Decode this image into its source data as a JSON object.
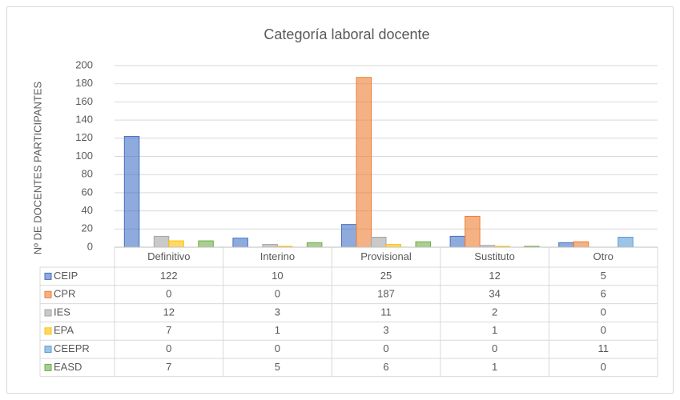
{
  "chart_data": {
    "type": "bar",
    "title": "Categoría laboral docente",
    "y_label": "Nº DE DOCENTES PARTICIPANTES",
    "categories": [
      "Definitivo",
      "Interino",
      "Provisional",
      "Sustituto",
      "Otro"
    ],
    "series": [
      {
        "name": "CEIP",
        "color": "#4472c4",
        "values": [
          122,
          10,
          25,
          12,
          5
        ]
      },
      {
        "name": "CPR",
        "color": "#ed7d31",
        "values": [
          0,
          0,
          187,
          34,
          6
        ]
      },
      {
        "name": "IES",
        "color": "#a5a5a5",
        "values": [
          12,
          3,
          11,
          2,
          0
        ]
      },
      {
        "name": "EPA",
        "color": "#ffc000",
        "values": [
          7,
          1,
          3,
          1,
          0
        ]
      },
      {
        "name": "CEEPR",
        "color": "#5b9bd5",
        "values": [
          0,
          0,
          0,
          0,
          11
        ]
      },
      {
        "name": "EASD",
        "color": "#70ad47",
        "values": [
          7,
          5,
          6,
          1,
          0
        ]
      }
    ],
    "ylim": [
      0,
      200
    ],
    "yticks": [
      0,
      20,
      40,
      60,
      80,
      100,
      120,
      140,
      160,
      180,
      200
    ],
    "grid": true,
    "data_table": true
  }
}
